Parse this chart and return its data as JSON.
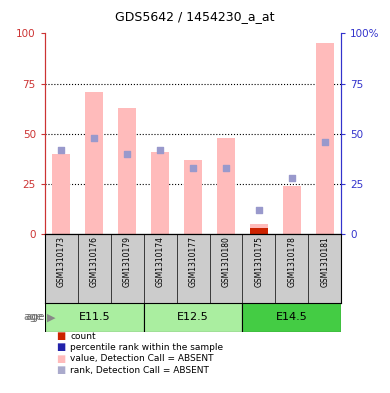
{
  "title": "GDS5642 / 1454230_a_at",
  "samples": [
    "GSM1310173",
    "GSM1310176",
    "GSM1310179",
    "GSM1310174",
    "GSM1310177",
    "GSM1310180",
    "GSM1310175",
    "GSM1310178",
    "GSM1310181"
  ],
  "age_groups": [
    {
      "label": "E11.5",
      "start": 0,
      "end": 3
    },
    {
      "label": "E12.5",
      "start": 3,
      "end": 6
    },
    {
      "label": "E14.5",
      "start": 6,
      "end": 9
    }
  ],
  "pink_bars": [
    40,
    71,
    63,
    41,
    37,
    48,
    5,
    24,
    95
  ],
  "blue_squares": [
    42,
    48,
    40,
    42,
    33,
    33,
    12,
    28,
    46
  ],
  "dark_red_bars": [
    0,
    0,
    0,
    0,
    0,
    0,
    3,
    0,
    0
  ],
  "ylim_left": [
    0,
    100
  ],
  "ylim_right": [
    0,
    100
  ],
  "yticks_left": [
    0,
    25,
    50,
    75,
    100
  ],
  "yticks_right": [
    0,
    25,
    50,
    75,
    100
  ],
  "left_tick_color": "#cc3333",
  "right_tick_color": "#3333cc",
  "pink_color": "#ffbbbb",
  "blue_sq_color": "#9999cc",
  "dark_red_color": "#cc2200",
  "dark_blue_color": "#2222aa",
  "bg_sample_row": "#cccccc",
  "bg_age_light": "#aaeea0",
  "bg_age_dark": "#44cc44",
  "legend_colors": [
    "#cc2200",
    "#2222aa",
    "#ffbbbb",
    "#aaaacc"
  ],
  "legend_labels": [
    "count",
    "percentile rank within the sample",
    "value, Detection Call = ABSENT",
    "rank, Detection Call = ABSENT"
  ]
}
